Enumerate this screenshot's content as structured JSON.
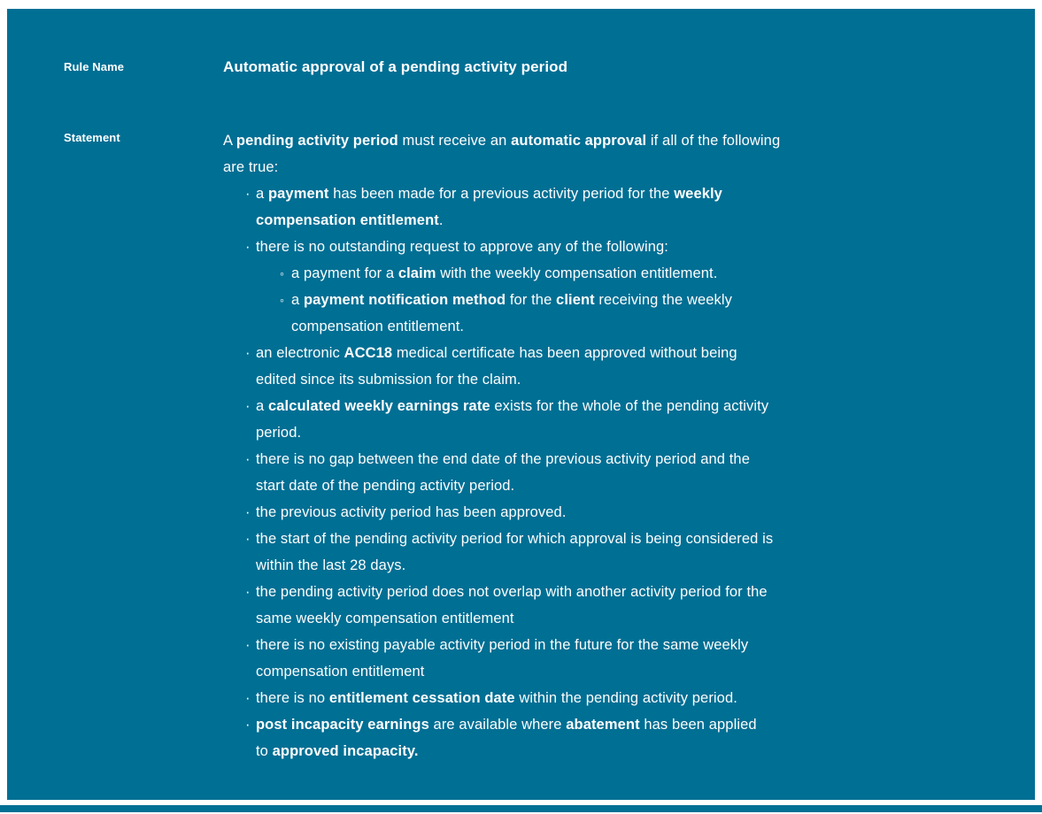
{
  "colors": {
    "panel_background": "#006F94",
    "text": "#FFFFFF",
    "page_background": "#FFFFFF"
  },
  "icons": {
    "bullet_level1": "·",
    "bullet_level2": "◦"
  },
  "labels": {
    "rule_name": "Rule Name",
    "statement": "Statement"
  },
  "rule": {
    "name": "Automatic approval of a pending activity period"
  },
  "statement": {
    "intro": {
      "runs": [
        {
          "t": "A ",
          "b": false
        },
        {
          "t": "pending activity period",
          "b": true
        },
        {
          "t": " must receive an ",
          "b": false
        },
        {
          "t": "automatic approval",
          "b": true
        },
        {
          "t": " if all of the following\nare true:",
          "b": false
        }
      ]
    },
    "bullets": [
      {
        "level": 1,
        "runs": [
          {
            "t": "a ",
            "b": false
          },
          {
            "t": "payment",
            "b": true
          },
          {
            "t": " has been made for a previous activity period for the ",
            "b": false
          },
          {
            "t": "weekly\ncompensation entitlement",
            "b": true
          },
          {
            "t": ".",
            "b": false
          }
        ]
      },
      {
        "level": 1,
        "runs": [
          {
            "t": "there is no outstanding request to approve any of the following:",
            "b": false
          }
        ]
      },
      {
        "level": 2,
        "runs": [
          {
            "t": "a payment for a ",
            "b": false
          },
          {
            "t": "claim",
            "b": true
          },
          {
            "t": " with the weekly compensation entitlement.",
            "b": false
          }
        ]
      },
      {
        "level": 2,
        "runs": [
          {
            "t": "a ",
            "b": false
          },
          {
            "t": "payment notification method",
            "b": true
          },
          {
            "t": " for the ",
            "b": false
          },
          {
            "t": "client",
            "b": true
          },
          {
            "t": " receiving the weekly\ncompensation entitlement.",
            "b": false
          }
        ]
      },
      {
        "level": 1,
        "runs": [
          {
            "t": "an electronic ",
            "b": false
          },
          {
            "t": "ACC18",
            "b": true
          },
          {
            "t": " medical certificate has been approved without being\nedited since its submission for the claim.",
            "b": false
          }
        ]
      },
      {
        "level": 1,
        "runs": [
          {
            "t": "a ",
            "b": false
          },
          {
            "t": "calculated weekly earnings rate",
            "b": true
          },
          {
            "t": " exists for the whole of the pending activity\nperiod.",
            "b": false
          }
        ]
      },
      {
        "level": 1,
        "runs": [
          {
            "t": "there is no gap between the end date of the previous activity period and the\nstart date of the pending activity period.",
            "b": false
          }
        ]
      },
      {
        "level": 1,
        "runs": [
          {
            "t": "the previous activity period has been approved.",
            "b": false
          }
        ]
      },
      {
        "level": 1,
        "runs": [
          {
            "t": "the start of the pending activity period for which approval is being considered is\nwithin the last 28 days.",
            "b": false
          }
        ]
      },
      {
        "level": 1,
        "runs": [
          {
            "t": "the pending activity period does not overlap with another activity period for the\nsame weekly compensation entitlement",
            "b": false
          }
        ]
      },
      {
        "level": 1,
        "runs": [
          {
            "t": "there is no existing payable activity period in the future for the same weekly\ncompensation entitlement",
            "b": false
          }
        ]
      },
      {
        "level": 1,
        "runs": [
          {
            "t": "there is no ",
            "b": false
          },
          {
            "t": "entitlement cessation date",
            "b": true
          },
          {
            "t": " within the pending activity period.",
            "b": false
          }
        ]
      },
      {
        "level": 1,
        "runs": [
          {
            "t": "post incapacity earnings",
            "b": true
          },
          {
            "t": " are available where ",
            "b": false
          },
          {
            "t": "abatement",
            "b": true
          },
          {
            "t": " has been applied\nto ",
            "b": false
          },
          {
            "t": "approved incapacity.",
            "b": true
          }
        ]
      }
    ]
  }
}
